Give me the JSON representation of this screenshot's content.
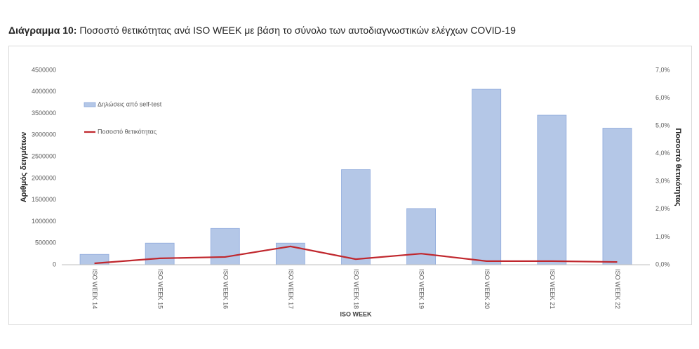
{
  "chart_data": {
    "type": "bar",
    "title_label": "Διάγραμμα 10:",
    "title": "Ποσοστό θετικότητας ανά ISO WEEK με βάση το σύνολο των αυτοδιαγνωστικών ελέγχων COVID-19",
    "x_label": "ISO WEEK",
    "y_label": "Αριθμός δειγμάτων",
    "y2_label": "Ποσοστό θετικότητας",
    "categories": [
      "ISO WEEK 14",
      "ISO WEEK 15",
      "ISO WEEK 16",
      "ISO WEEK 17",
      "ISO WEEK 18",
      "ISO WEEK 19",
      "ISO WEEK 20",
      "ISO WEEK 21",
      "ISO WEEK 22"
    ],
    "series": [
      {
        "name": "Δηλώσεις από self-test",
        "type": "bar",
        "color": "#b4c7e7",
        "values": [
          240000,
          500000,
          840000,
          500000,
          2200000,
          1300000,
          4060000,
          3460000,
          3160000
        ]
      },
      {
        "name": "Ποσοστό θετικότητας",
        "type": "line",
        "axis": "y2",
        "color": "#c0272d",
        "values": [
          0.05,
          0.23,
          0.28,
          0.66,
          0.2,
          0.4,
          0.13,
          0.13,
          0.1
        ]
      }
    ],
    "ylim": [
      0,
      4500000
    ],
    "yticks": [
      0,
      500000,
      1000000,
      1500000,
      2000000,
      2500000,
      3000000,
      3500000,
      4000000,
      4500000
    ],
    "y2lim": [
      0,
      7
    ],
    "y2ticks": [
      {
        "value": 0,
        "label": "0,0%"
      },
      {
        "value": 1,
        "label": "1,0%"
      },
      {
        "value": 2,
        "label": "2,0%"
      },
      {
        "value": 3,
        "label": "3,0%"
      },
      {
        "value": 4,
        "label": "4,0%"
      },
      {
        "value": 5,
        "label": "5,0%"
      },
      {
        "value": 6,
        "label": "6,0%"
      },
      {
        "value": 7,
        "label": "7,0%"
      }
    ],
    "grid": false,
    "legend": "upper-left"
  }
}
